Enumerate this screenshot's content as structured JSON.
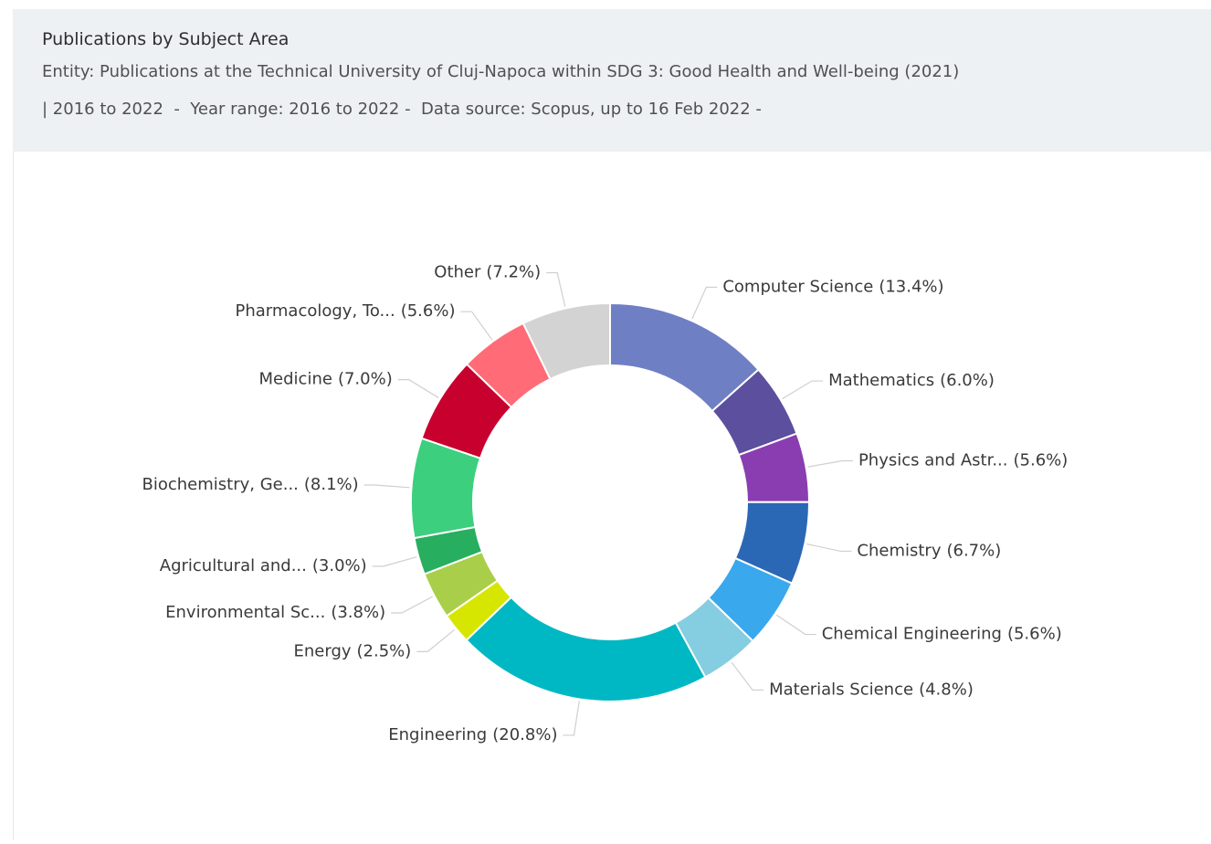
{
  "chart_data": {
    "type": "donut",
    "title": "Publications by Subject Area",
    "subtitle": [
      "Entity: Publications at the Technical University of Cluj-Napoca within SDG 3: Good Health and Well-being (2021)",
      "| 2016 to 2022  -  Year range: 2016 to 2022 -  Data source: Scopus, up to 16 Feb 2022 -"
    ],
    "categories": [
      "Computer Science",
      "Mathematics",
      "Physics and Astr...",
      "Chemistry",
      "Chemical Engineering",
      "Materials Science",
      "Engineering",
      "Energy",
      "Environmental Sc...",
      "Agricultural and...",
      "Biochemistry, Ge...",
      "Medicine",
      "Pharmacology, To...",
      "Other"
    ],
    "values": [
      13.4,
      6.0,
      5.6,
      6.7,
      5.6,
      4.8,
      20.8,
      2.5,
      3.8,
      3.0,
      8.1,
      7.0,
      5.6,
      7.2
    ],
    "value_labels": [
      "(13.4%)",
      "(6.0%)",
      "(5.6%)",
      "(6.7%)",
      "(5.6%)",
      "(4.8%)",
      "(20.8%)",
      "(2.5%)",
      "(3.8%)",
      "(3.0%)",
      "(8.1%)",
      "(7.0%)",
      "(5.6%)",
      "(7.2%)"
    ],
    "colors": [
      "#6f7fc4",
      "#5b4f9e",
      "#8a3db0",
      "#2a67b5",
      "#3aa8ec",
      "#85cde0",
      "#00b8c4",
      "#d6e600",
      "#a9cf4a",
      "#27ae5f",
      "#3ccf7e",
      "#c8002e",
      "#ff6b77",
      "#d3d3d3"
    ]
  }
}
